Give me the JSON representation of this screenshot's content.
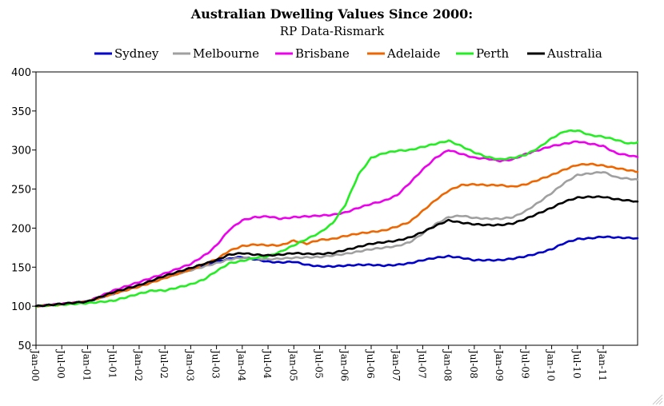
{
  "chart_data": {
    "type": "line",
    "title": "Australian Dwelling Values Since 2000:",
    "subtitle": "RP Data-Rismark",
    "xlabel": "",
    "ylabel": "",
    "ylim": [
      50,
      400
    ],
    "yticks": [
      50,
      100,
      150,
      200,
      250,
      300,
      350,
      400
    ],
    "grid": false,
    "legend_position": "top",
    "x_tick_labels": [
      "Jan-00",
      "Jul-00",
      "Jan-01",
      "Jul-01",
      "Jan-02",
      "Jul-02",
      "Jan-03",
      "Jul-03",
      "Jan-04",
      "Jul-04",
      "Jan-05",
      "Jul-05",
      "Jan-06",
      "Jul-06",
      "Jan-07",
      "Jul-07",
      "Jan-08",
      "Jul-08",
      "Jan-09",
      "Jul-09",
      "Jan-10",
      "Jul-10",
      "Jan-11"
    ],
    "x_tick_months": [
      0,
      6,
      12,
      18,
      24,
      30,
      36,
      42,
      48,
      54,
      60,
      66,
      72,
      78,
      84,
      90,
      96,
      102,
      108,
      114,
      120,
      126,
      132
    ],
    "x_range_months": [
      0,
      140
    ],
    "series": [
      {
        "name": "Sydney",
        "color": "#0000cc",
        "months": [
          0,
          6,
          12,
          18,
          24,
          30,
          36,
          42,
          46,
          48,
          51,
          54,
          57,
          60,
          63,
          66,
          69,
          72,
          75,
          78,
          81,
          84,
          87,
          90,
          93,
          96,
          99,
          102,
          105,
          108,
          111,
          114,
          117,
          120,
          123,
          126,
          129,
          132,
          135,
          140
        ],
        "values": [
          100,
          103,
          106,
          116,
          127,
          137,
          147,
          157,
          162,
          163,
          160,
          157,
          156,
          157,
          153,
          151,
          151,
          152,
          153,
          153,
          152,
          153,
          155,
          159,
          162,
          164,
          162,
          159,
          159,
          159,
          161,
          164,
          168,
          173,
          181,
          186,
          187,
          189,
          188,
          187
        ]
      },
      {
        "name": "Melbourne",
        "color": "#a0a0a0",
        "months": [
          0,
          6,
          12,
          18,
          24,
          30,
          36,
          42,
          45,
          48,
          51,
          54,
          60,
          66,
          72,
          78,
          84,
          87,
          90,
          93,
          96,
          99,
          102,
          105,
          108,
          111,
          114,
          117,
          120,
          123,
          126,
          129,
          132,
          135,
          140
        ],
        "values": [
          100,
          103,
          106,
          116,
          127,
          137,
          146,
          155,
          160,
          162,
          161,
          160,
          162,
          163,
          167,
          173,
          177,
          182,
          193,
          205,
          214,
          216,
          213,
          212,
          212,
          214,
          222,
          233,
          245,
          258,
          268,
          270,
          272,
          265,
          262
        ]
      },
      {
        "name": "Brisbane",
        "color": "#ee00ee",
        "months": [
          0,
          6,
          12,
          18,
          24,
          30,
          36,
          40,
          42,
          45,
          48,
          51,
          54,
          57,
          60,
          63,
          66,
          69,
          72,
          75,
          78,
          81,
          84,
          87,
          90,
          93,
          96,
          99,
          102,
          105,
          108,
          111,
          114,
          117,
          120,
          123,
          126,
          129,
          132,
          135,
          140
        ],
        "values": [
          100,
          103,
          106,
          120,
          131,
          142,
          154,
          168,
          178,
          198,
          210,
          214,
          215,
          212,
          214,
          215,
          216,
          217,
          220,
          226,
          231,
          235,
          242,
          258,
          275,
          290,
          300,
          295,
          290,
          289,
          286,
          288,
          295,
          300,
          305,
          308,
          311,
          308,
          305,
          296,
          291
        ]
      },
      {
        "name": "Adelaide",
        "color": "#ee6600",
        "months": [
          0,
          6,
          12,
          18,
          24,
          30,
          36,
          42,
          45,
          48,
          51,
          54,
          57,
          60,
          63,
          66,
          69,
          72,
          75,
          78,
          81,
          84,
          87,
          90,
          93,
          96,
          99,
          102,
          105,
          108,
          111,
          114,
          117,
          120,
          123,
          126,
          129,
          132,
          135,
          140
        ],
        "values": [
          100,
          102,
          106,
          116,
          125,
          136,
          147,
          160,
          171,
          177,
          179,
          178,
          178,
          184,
          180,
          185,
          186,
          190,
          193,
          195,
          197,
          202,
          208,
          222,
          236,
          248,
          255,
          256,
          255,
          255,
          253,
          256,
          262,
          268,
          275,
          281,
          282,
          280,
          277,
          272
        ]
      },
      {
        "name": "Perth",
        "color": "#22ee22",
        "months": [
          0,
          6,
          12,
          18,
          24,
          27,
          30,
          33,
          36,
          39,
          42,
          45,
          48,
          51,
          54,
          57,
          60,
          63,
          66,
          69,
          72,
          75,
          78,
          81,
          84,
          87,
          90,
          93,
          96,
          99,
          102,
          105,
          108,
          111,
          114,
          117,
          120,
          123,
          126,
          129,
          132,
          135,
          138,
          140
        ],
        "values": [
          100,
          102,
          104,
          107,
          116,
          120,
          120,
          124,
          128,
          134,
          145,
          155,
          158,
          162,
          164,
          170,
          178,
          186,
          194,
          206,
          230,
          268,
          290,
          296,
          299,
          300,
          304,
          308,
          312,
          305,
          297,
          291,
          288,
          290,
          294,
          303,
          315,
          324,
          325,
          319,
          317,
          313,
          308,
          310
        ]
      },
      {
        "name": "Australia",
        "color": "#000000",
        "months": [
          0,
          6,
          12,
          18,
          24,
          30,
          36,
          42,
          45,
          48,
          51,
          54,
          57,
          60,
          63,
          66,
          69,
          72,
          75,
          78,
          81,
          84,
          87,
          90,
          93,
          96,
          99,
          102,
          105,
          108,
          111,
          114,
          117,
          120,
          123,
          126,
          129,
          132,
          135,
          140
        ],
        "values": [
          100,
          103,
          106,
          118,
          127,
          139,
          149,
          159,
          166,
          168,
          166,
          165,
          166,
          168,
          167,
          167,
          168,
          172,
          176,
          180,
          182,
          184,
          188,
          195,
          203,
          210,
          207,
          205,
          204,
          204,
          206,
          212,
          219,
          226,
          234,
          239,
          240,
          240,
          237,
          234
        ]
      }
    ]
  }
}
